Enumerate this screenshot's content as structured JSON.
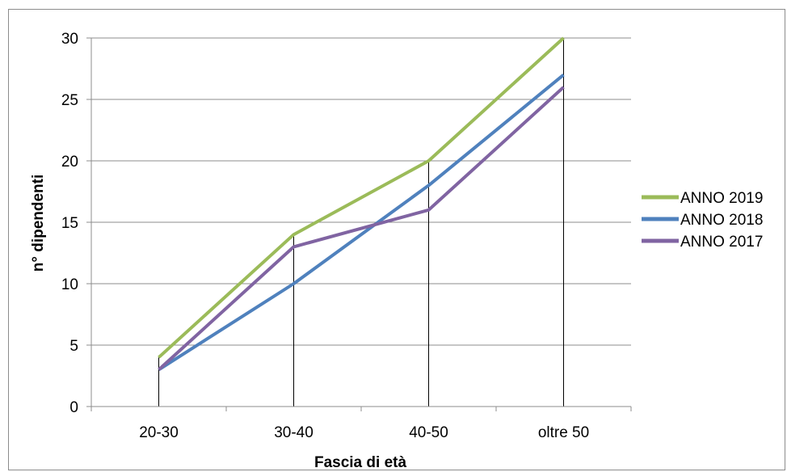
{
  "chart_data": {
    "type": "line",
    "title": "",
    "xlabel": "Fascia di età",
    "ylabel": "n° dipendenti",
    "categories": [
      "20-30",
      "30-40",
      "40-50",
      "oltre 50"
    ],
    "ylim": [
      0,
      30
    ],
    "yticks": [
      0,
      5,
      10,
      15,
      20,
      25,
      30
    ],
    "grid": true,
    "legend_position": "right",
    "series": [
      {
        "name": "ANNO 2019",
        "color": "#9bbb59",
        "values": [
          4,
          14,
          20,
          30
        ]
      },
      {
        "name": "ANNO 2018",
        "color": "#4f81bd",
        "values": [
          3,
          10,
          18,
          27
        ]
      },
      {
        "name": "ANNO 2017",
        "color": "#8064a2",
        "values": [
          3,
          13,
          16,
          26
        ]
      }
    ]
  }
}
